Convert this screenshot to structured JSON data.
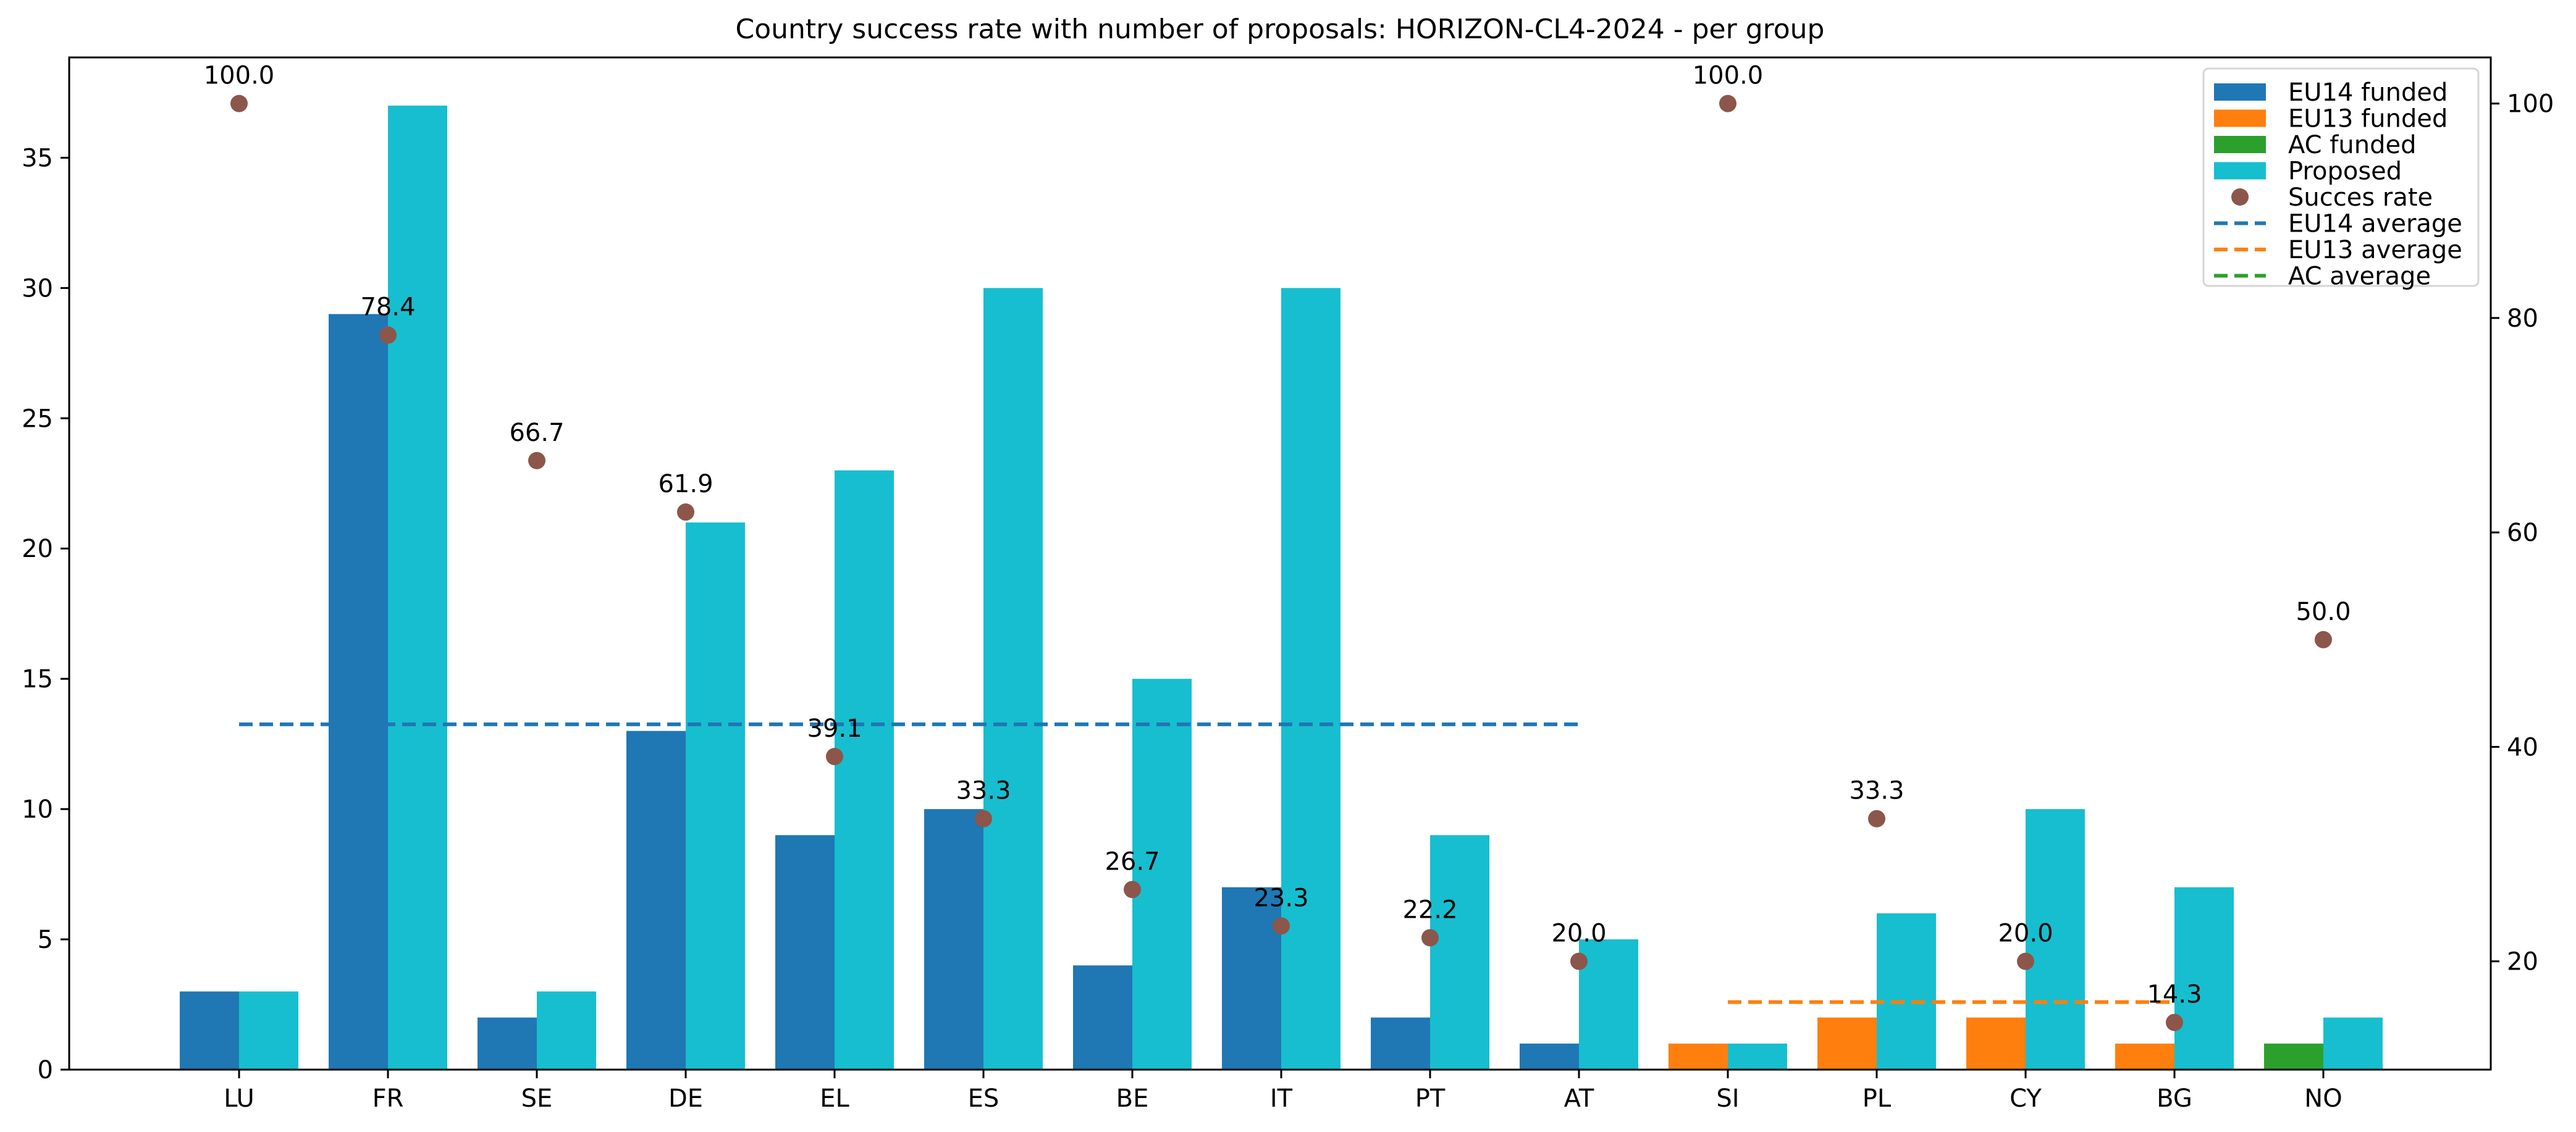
{
  "chart_data": {
    "type": "bar",
    "title": "Country success rate with number of proposals: HORIZON-CL4-2024 - per group",
    "xlabel": "",
    "ylabel": "",
    "ylabel_right": "",
    "categories": [
      "LU",
      "FR",
      "SE",
      "DE",
      "EL",
      "ES",
      "BE",
      "IT",
      "PT",
      "AT",
      "SI",
      "PL",
      "CY",
      "BG",
      "NO"
    ],
    "groups": [
      "EU14",
      "EU14",
      "EU14",
      "EU14",
      "EU14",
      "EU14",
      "EU14",
      "EU14",
      "EU14",
      "EU14",
      "EU13",
      "EU13",
      "EU13",
      "EU13",
      "AC"
    ],
    "series": [
      {
        "name": "EU14 funded",
        "kind": "bar",
        "axis": "left",
        "color": "#1f77b4",
        "values": [
          3,
          29,
          2,
          13,
          9,
          10,
          4,
          7,
          2,
          1,
          null,
          null,
          null,
          null,
          null
        ]
      },
      {
        "name": "EU13 funded",
        "kind": "bar",
        "axis": "left",
        "color": "#ff7f0e",
        "values": [
          null,
          null,
          null,
          null,
          null,
          null,
          null,
          null,
          null,
          null,
          1,
          2,
          2,
          1,
          null
        ]
      },
      {
        "name": "AC funded",
        "kind": "bar",
        "axis": "left",
        "color": "#2ca02c",
        "values": [
          null,
          null,
          null,
          null,
          null,
          null,
          null,
          null,
          null,
          null,
          null,
          null,
          null,
          null,
          1
        ]
      },
      {
        "name": "Proposed",
        "kind": "bar",
        "axis": "left",
        "color": "#17becf",
        "values": [
          3,
          37,
          3,
          21,
          23,
          30,
          15,
          30,
          9,
          5,
          1,
          6,
          10,
          7,
          2
        ]
      },
      {
        "name": "Succes rate",
        "kind": "scatter",
        "axis": "right",
        "color": "#8c564b",
        "values": [
          100.0,
          78.4,
          66.7,
          61.9,
          39.1,
          33.3,
          26.7,
          23.3,
          22.2,
          20.0,
          100.0,
          33.3,
          20.0,
          14.3,
          50.0
        ],
        "labels": [
          "100.0",
          "78.4",
          "66.7",
          "61.9",
          "39.1",
          "33.3",
          "26.7",
          "23.3",
          "22.2",
          "20.0",
          "100.0",
          "33.3",
          "20.0",
          "14.3",
          "50.0"
        ]
      }
    ],
    "averages": [
      {
        "name": "EU14 average",
        "color": "#1f77b4",
        "value": 42.1,
        "from": "LU",
        "to": "AT"
      },
      {
        "name": "EU13 average",
        "color": "#ff7f0e",
        "value": 16.2,
        "from": "SI",
        "to": "BG"
      },
      {
        "name": "AC average",
        "color": "#2ca02c",
        "value": 50.0,
        "from": "NO",
        "to": "NO"
      }
    ],
    "left_axis": {
      "ylim": [
        0,
        38.85
      ],
      "ticks": [
        0,
        5,
        10,
        15,
        20,
        25,
        30,
        35
      ]
    },
    "right_axis": {
      "ylim": [
        9.9,
        104.3
      ],
      "ticks": [
        20,
        40,
        60,
        80,
        100
      ]
    },
    "grid": false,
    "legend": {
      "position": "top-right",
      "entries": [
        {
          "label": "EU14 funded",
          "marker": "patch",
          "color": "#1f77b4"
        },
        {
          "label": "EU13 funded",
          "marker": "patch",
          "color": "#ff7f0e"
        },
        {
          "label": "AC funded",
          "marker": "patch",
          "color": "#2ca02c"
        },
        {
          "label": "Proposed",
          "marker": "patch",
          "color": "#17becf"
        },
        {
          "label": "Succes rate",
          "marker": "dot",
          "color": "#8c564b"
        },
        {
          "label": "EU14 average",
          "marker": "dashed",
          "color": "#1f77b4"
        },
        {
          "label": "EU13 average",
          "marker": "dashed",
          "color": "#ff7f0e"
        },
        {
          "label": "AC average",
          "marker": "dashed",
          "color": "#2ca02c"
        }
      ]
    }
  }
}
